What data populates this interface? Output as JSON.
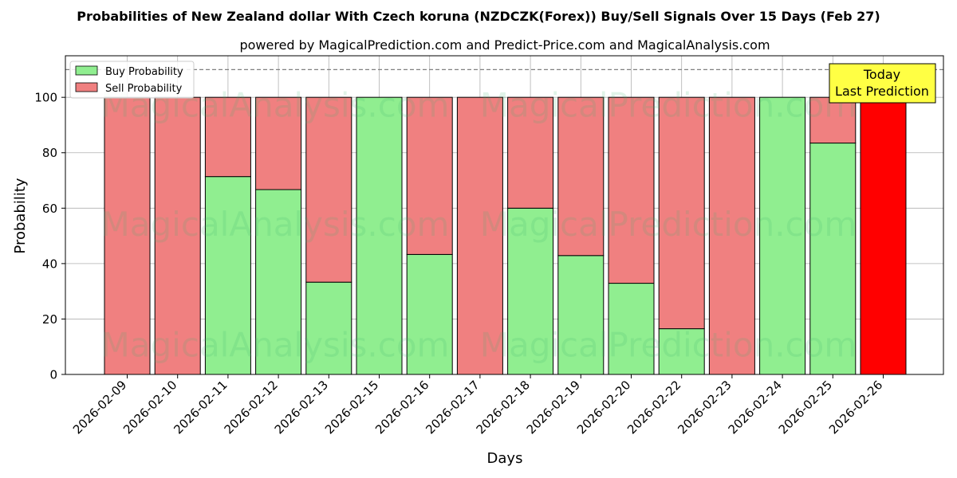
{
  "chart_data": {
    "type": "bar",
    "stacked": true,
    "title": "Probabilities of New Zealand dollar With Czech koruna (NZDCZK(Forex)) Buy/Sell Signals Over 15 Days (Feb 27)",
    "subtitle": "powered by MagicalPrediction.com and Predict-Price.com and MagicalAnalysis.com",
    "xlabel": "Days",
    "ylabel": "Probability",
    "ylim": [
      0,
      115
    ],
    "yticks": [
      0,
      20,
      40,
      60,
      80,
      100
    ],
    "grid": true,
    "legend_position": "top-left",
    "reference_line": 110,
    "categories": [
      "2026-02-09",
      "2026-02-10",
      "2026-02-11",
      "2026-02-12",
      "2026-02-13",
      "2026-02-15",
      "2026-02-16",
      "2026-02-17",
      "2026-02-18",
      "2026-02-19",
      "2026-02-20",
      "2026-02-22",
      "2026-02-23",
      "2026-02-24",
      "2026-02-25",
      "2026-02-26"
    ],
    "series": [
      {
        "name": "Buy Probability",
        "color": "#90ee90",
        "values": [
          0,
          0,
          71.4,
          66.7,
          33.3,
          100,
          43.3,
          0,
          60,
          42.9,
          32.9,
          16.5,
          0,
          100,
          83.5,
          0
        ]
      },
      {
        "name": "Sell Probability",
        "color": "#f08080",
        "values": [
          100,
          100,
          28.6,
          33.3,
          66.7,
          0,
          56.7,
          100,
          40,
          57.1,
          67.1,
          83.5,
          100,
          0,
          16.5,
          100
        ]
      }
    ],
    "highlight": {
      "index": 15,
      "color": "#ff0000"
    },
    "annotation": {
      "lines": [
        "Today",
        "Last Prediction"
      ],
      "background": "#ffff44"
    },
    "watermarks": [
      "MagicalAnalysis.com",
      "MagicalPrediction.com"
    ]
  }
}
